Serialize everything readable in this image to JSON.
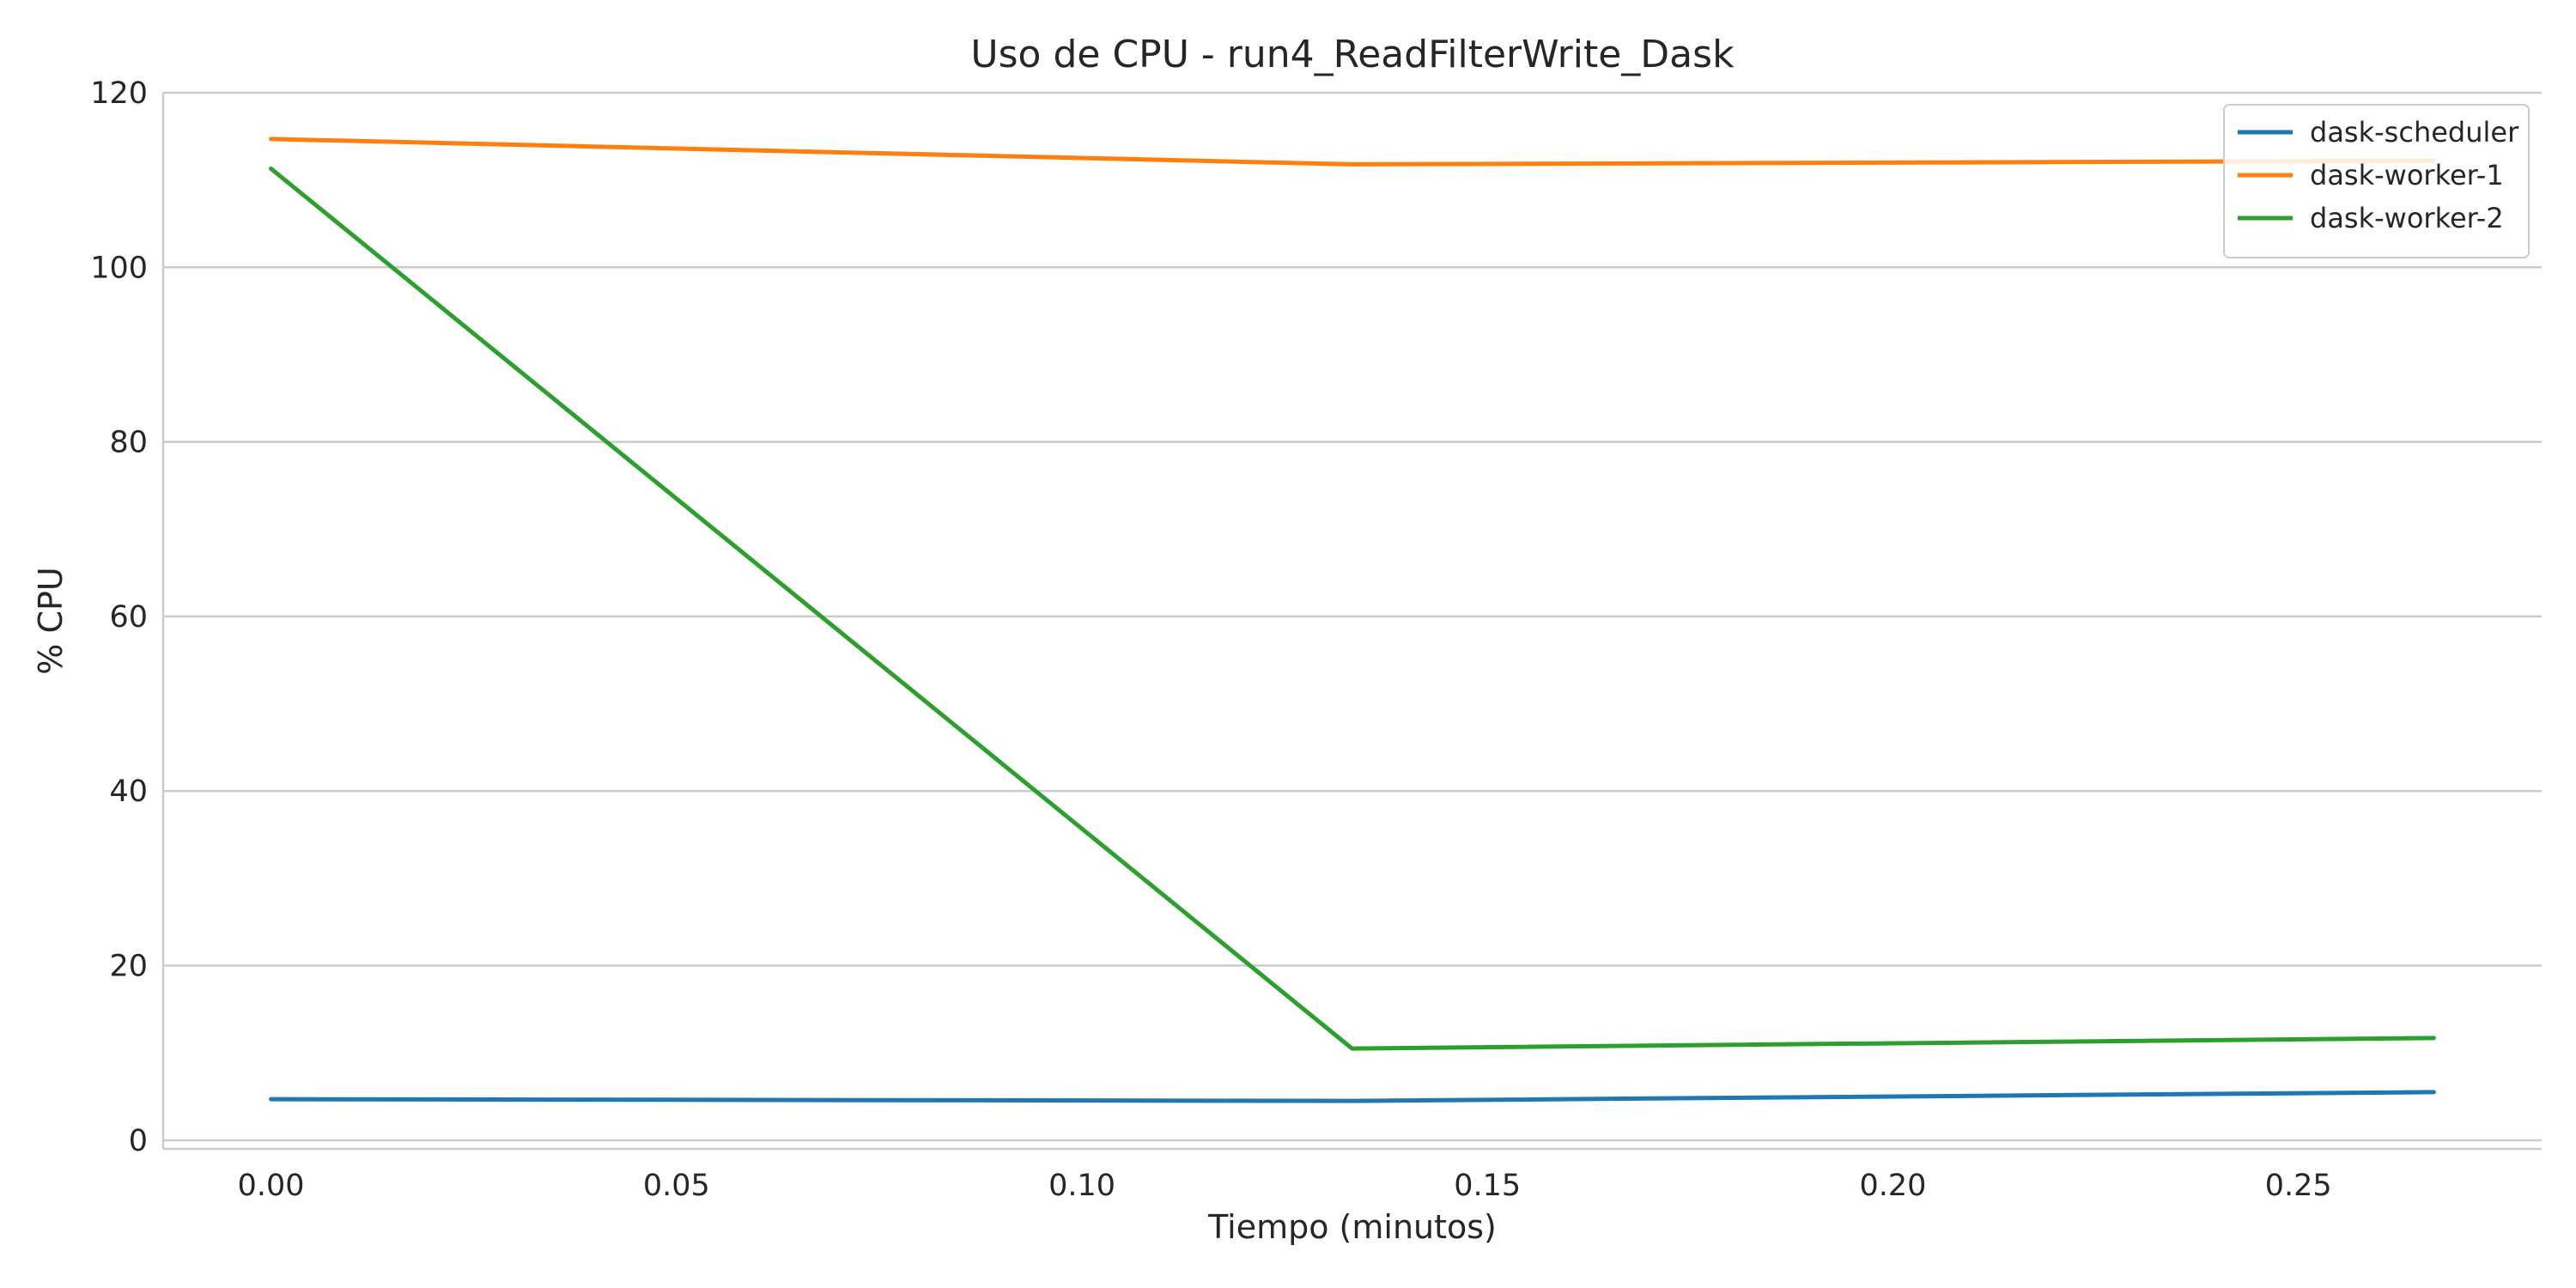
{
  "chart_data": {
    "type": "line",
    "title": "Uso de CPU - run4_ReadFilterWrite_Dask",
    "xlabel": "Tiempo (minutos)",
    "ylabel": "% CPU",
    "xlim": [
      -0.0133,
      0.28
    ],
    "ylim": [
      -1,
      120
    ],
    "x_ticks": [
      "0.00",
      "0.05",
      "0.10",
      "0.15",
      "0.20",
      "0.25"
    ],
    "y_ticks": [
      "0",
      "20",
      "40",
      "60",
      "80",
      "100",
      "120"
    ],
    "grid": "horizontal",
    "legend_position": "top-right",
    "x": [
      0.0,
      0.1333,
      0.2667
    ],
    "series": [
      {
        "name": "dask-scheduler",
        "color": "#1f77b4",
        "values": [
          4.7,
          4.5,
          5.5
        ]
      },
      {
        "name": "dask-worker-1",
        "color": "#ff7f0e",
        "values": [
          114.7,
          111.8,
          112.2
        ]
      },
      {
        "name": "dask-worker-2",
        "color": "#2ca02c",
        "values": [
          111.3,
          10.5,
          11.7
        ]
      }
    ]
  }
}
